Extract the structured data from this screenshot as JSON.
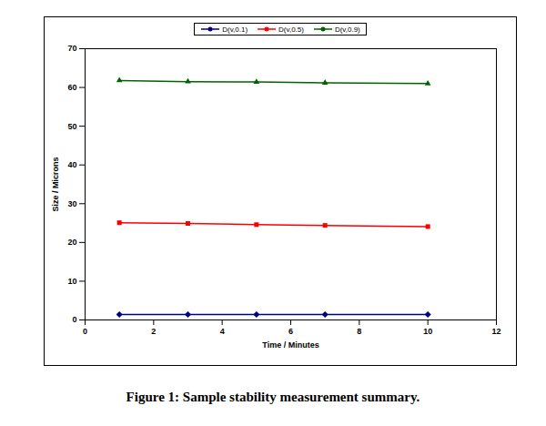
{
  "chart_data": {
    "type": "line",
    "caption": "Figure 1: Sample stability measurement summary.",
    "x_label": "Time / Minutes",
    "y_label": "Size / Microns",
    "x": [
      1,
      3,
      5,
      7,
      10
    ],
    "series": [
      {
        "name": "D(v,0.1)",
        "color": "#000080",
        "marker": "diamond",
        "line_style": "solid",
        "values": [
          1.4,
          1.4,
          1.4,
          1.4,
          1.4
        ]
      },
      {
        "name": "D(v,0.5)",
        "color": "#ff0000",
        "marker": "square",
        "line_style": "solid",
        "values": [
          25.1,
          24.9,
          24.6,
          24.4,
          24.1
        ]
      },
      {
        "name": "D(v,0.9)",
        "color": "#006400",
        "marker": "triangle",
        "line_style": "solid",
        "values": [
          61.8,
          61.5,
          61.4,
          61.2,
          61.0
        ]
      }
    ],
    "xlim": [
      0,
      12
    ],
    "xticks": [
      0,
      2,
      4,
      6,
      8,
      10,
      12
    ],
    "ylim": [
      0,
      70
    ],
    "yticks": [
      0,
      10,
      20,
      30,
      40,
      50,
      60,
      70
    ],
    "grid": false,
    "legend": "top"
  }
}
